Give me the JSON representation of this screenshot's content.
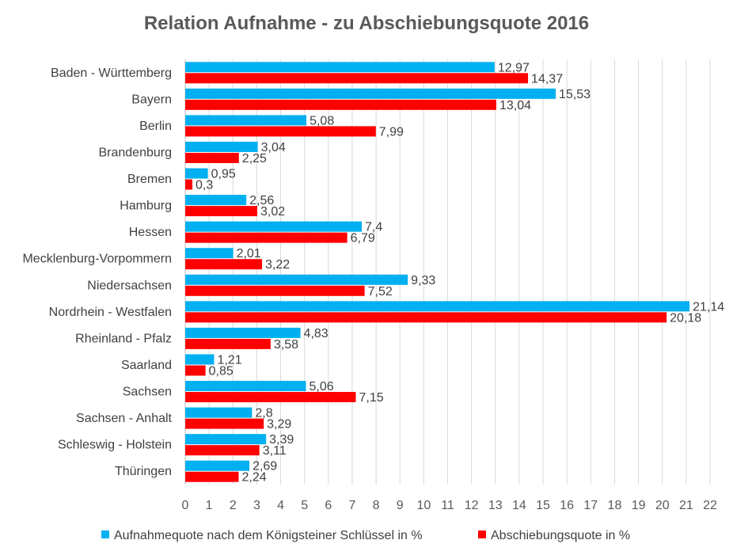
{
  "chart_data": {
    "type": "bar",
    "orientation": "horizontal",
    "title": "Relation Aufnahme - zu Abschiebungsquote 2016",
    "categories": [
      "Baden - Württemberg",
      "Bayern",
      "Berlin",
      "Brandenburg",
      "Bremen",
      "Hamburg",
      "Hessen",
      "Mecklenburg-Vorpommern",
      "Niedersachsen",
      "Nordrhein - Westfalen",
      "Rheinland - Pfalz",
      "Saarland",
      "Sachsen",
      "Sachsen - Anhalt",
      "Schleswig - Holstein",
      "Thüringen"
    ],
    "series": [
      {
        "name": "Aufnahmequote nach dem Königsteiner Schlüssel in %",
        "color": "#00B0F0",
        "values": [
          12.97,
          15.53,
          5.08,
          3.04,
          0.95,
          2.56,
          7.4,
          2.01,
          9.33,
          21.14,
          4.83,
          1.21,
          5.06,
          2.8,
          3.39,
          2.69
        ],
        "labels": [
          "12,97",
          "15,53",
          "5,08",
          "3,04",
          "0,95",
          "2,56",
          "7,4",
          "2,01",
          "9,33",
          "21,14",
          "4,83",
          "1,21",
          "5,06",
          "2,8",
          "3,39",
          "2,69"
        ]
      },
      {
        "name": "Abschiebungsquote in %",
        "color": "#FF0000",
        "values": [
          14.37,
          13.04,
          7.99,
          2.25,
          0.3,
          3.02,
          6.79,
          3.22,
          7.52,
          20.18,
          3.58,
          0.85,
          7.15,
          3.29,
          3.11,
          2.24
        ],
        "labels": [
          "14,37",
          "13,04",
          "7,99",
          "2,25",
          "0,3",
          "3,02",
          "6,79",
          "3,22",
          "7,52",
          "20,18",
          "3,58",
          "0,85",
          "7,15",
          "3,29",
          "3,11",
          "2,24"
        ]
      }
    ],
    "xlim": [
      0,
      22
    ],
    "xticks": [
      0,
      1,
      2,
      3,
      4,
      5,
      6,
      7,
      8,
      9,
      10,
      11,
      12,
      13,
      14,
      15,
      16,
      17,
      18,
      19,
      20,
      21,
      22
    ],
    "grid": "vertical",
    "legend_position": "bottom"
  }
}
